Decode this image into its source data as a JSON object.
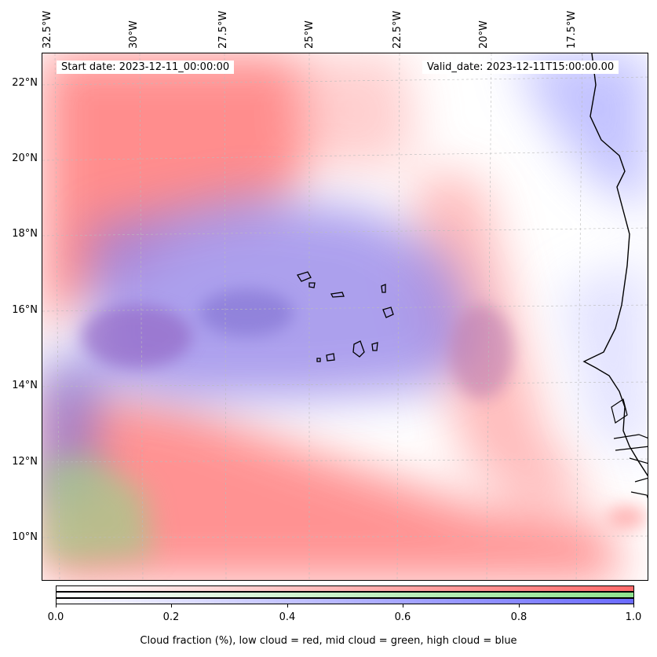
{
  "map": {
    "start_date": "Start date: 2023-12-11_00:00:00",
    "valid_date": "Valid_date: 2023-12-11T15:00:00.00",
    "lat_labels": [
      "22°N",
      "20°N",
      "18°N",
      "16°N",
      "14°N",
      "12°N",
      "10°N"
    ],
    "lon_labels": [
      "32.5°W",
      "30°W",
      "27.5°W",
      "25°W",
      "22.5°W",
      "20°W",
      "17.5°W"
    ],
    "colors": {
      "low_cloud": "#ff6b6b",
      "mid_cloud": "#8fe38f",
      "high_cloud": "#6b6bff"
    }
  },
  "colorbar": {
    "ticks": [
      "0.0",
      "0.2",
      "0.4",
      "0.6",
      "0.8",
      "1.0"
    ],
    "label": "Cloud fraction (%), low cloud = red, mid cloud = green, high cloud = blue"
  }
}
